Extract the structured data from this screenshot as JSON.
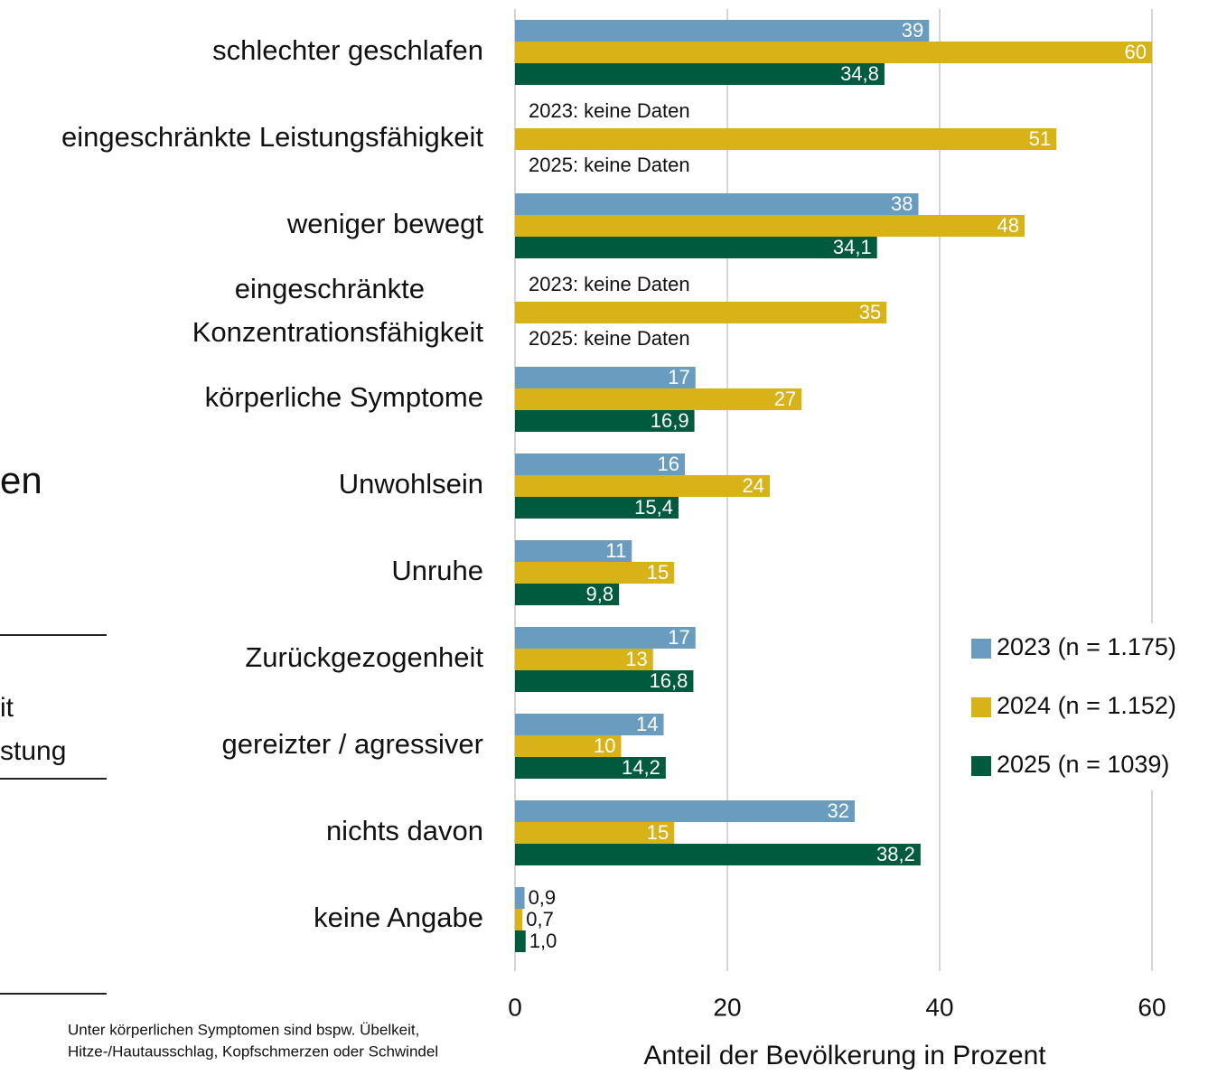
{
  "chart_data": {
    "type": "bar",
    "orientation": "horizontal",
    "categories": [
      "schlechter geschlafen",
      "eingeschränkte Leistungsfähigkeit",
      "weniger bewegt",
      "eingeschränkte\nKonzentrationsfähigkeit",
      "körperliche Symptome",
      "Unwohlsein",
      "Unruhe",
      "Zurückgezogenheit",
      "gereizter / agressiver",
      "nichts davon",
      "keine Angabe"
    ],
    "series": [
      {
        "name": "2023 (n = 1.175)",
        "color": "#6a9cc0",
        "values": [
          39,
          null,
          38,
          null,
          17,
          16,
          11,
          17,
          14,
          32,
          0.9
        ],
        "value_labels": [
          "39",
          null,
          "38",
          null,
          "17",
          "16",
          "11",
          "17",
          "14",
          "32",
          "0,9"
        ]
      },
      {
        "name": "2024 (n = 1.152)",
        "color": "#d8b317",
        "values": [
          60,
          51,
          48,
          35,
          27,
          24,
          15,
          13,
          10,
          15,
          0.7
        ],
        "value_labels": [
          "60",
          "51",
          "48",
          "35",
          "27",
          "24",
          "15",
          "13",
          "10",
          "15",
          "0,7"
        ]
      },
      {
        "name": "2025 (n = 1039)",
        "color": "#005a3e",
        "values": [
          34.8,
          null,
          34.1,
          null,
          16.9,
          15.4,
          9.8,
          16.8,
          14.2,
          38.2,
          1.0
        ],
        "value_labels": [
          "34,8",
          null,
          "34,1",
          null,
          "16,9",
          "15,4",
          "9,8",
          "16,8",
          "14,2",
          "38,2",
          "1,0"
        ]
      }
    ],
    "annotations": [
      "2023: keine Daten",
      "2025: keine Daten",
      "2023: keine Daten",
      "2025: keine Daten"
    ],
    "xlabel": "Anteil der Bevölkerung in Prozent",
    "xlim": [
      0,
      60
    ],
    "xticks": [
      0,
      20,
      40,
      60
    ],
    "grid": true,
    "legend": "right"
  },
  "left_fragments": [
    "en",
    "it",
    "stung"
  ],
  "footnote": [
    "Unter körperlichen Symptomen sind bspw. Übelkeit,",
    "Hitze-/Hautausschlag, Kopfschmerzen oder Schwindel"
  ]
}
